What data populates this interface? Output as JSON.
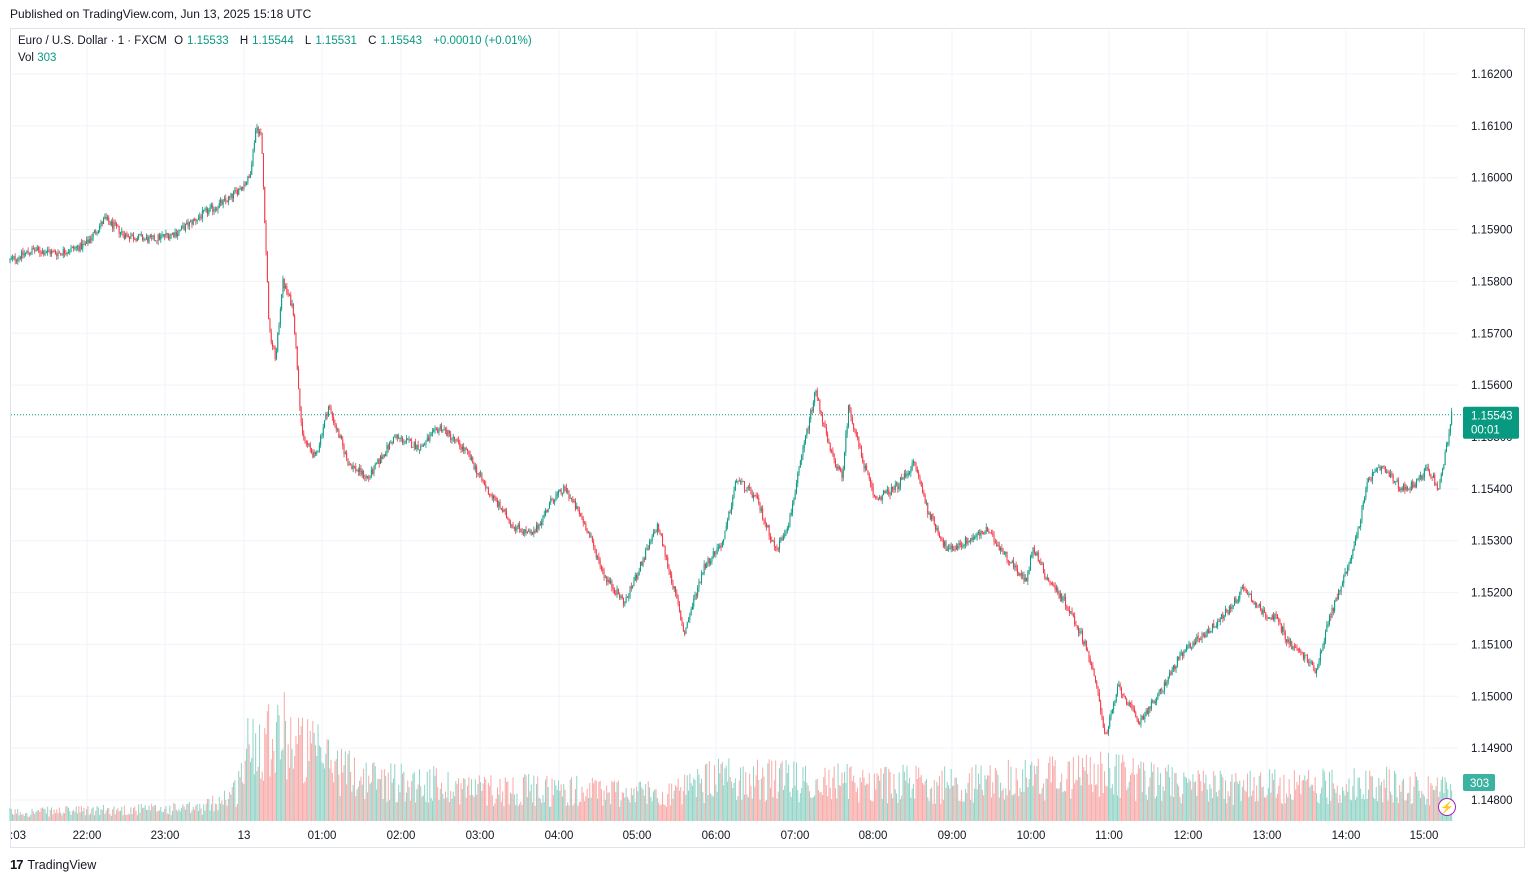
{
  "header": {
    "published": "Published on TradingView.com, Jun 13, 2025 15:18 UTC"
  },
  "legend": {
    "symbol": "Euro / U.S. Dollar · 1 · FXCM",
    "open_label": "O",
    "open": "1.15533",
    "high_label": "H",
    "high": "1.15544",
    "low_label": "L",
    "low": "1.15531",
    "close_label": "C",
    "close": "1.15543",
    "change": "+0.00010 (+0.01%)",
    "vol_label": "Vol",
    "vol_value": "303"
  },
  "footer": {
    "logo": "17",
    "brand": "TradingView"
  },
  "icons": {
    "bolt": "lightning-icon",
    "logo": "tradingview-logo-icon"
  },
  "colors": {
    "up": "#089981",
    "down": "#f23645",
    "vol_up": "#8fd3c6",
    "vol_down": "#f7a9a7",
    "grid": "#f0f3fa"
  },
  "chart_data": {
    "type": "candlestick",
    "symbol": "EURUSD",
    "timeframe": "1",
    "y_ticks": [
      "1.14800",
      "1.14900",
      "1.15000",
      "1.15100",
      "1.15200",
      "1.15300",
      "1.15400",
      "1.15500",
      "1.15600",
      "1.15700",
      "1.15800",
      "1.15900",
      "1.16000",
      "1.16100",
      "1.16200"
    ],
    "ylim": [
      1.1475,
      1.1627
    ],
    "x_ticks": [
      ":03",
      "22:00",
      "23:00",
      "13",
      "01:00",
      "02:00",
      "03:00",
      "04:00",
      "05:00",
      "06:00",
      "07:00",
      "08:00",
      "09:00",
      "10:00",
      "11:00",
      "12:00",
      "13:00",
      "14:00",
      "15:00"
    ],
    "last_price": "1.15543",
    "countdown": "00:01",
    "last_volume": "303",
    "price_path": [
      {
        "t": "21:03",
        "p": 1.1584
      },
      {
        "t": "21:20",
        "p": 1.1586
      },
      {
        "t": "21:40",
        "p": 1.15855
      },
      {
        "t": "22:00",
        "p": 1.1587
      },
      {
        "t": "22:15",
        "p": 1.1592
      },
      {
        "t": "22:30",
        "p": 1.1589
      },
      {
        "t": "22:50",
        "p": 1.1588
      },
      {
        "t": "23:10",
        "p": 1.15895
      },
      {
        "t": "23:30",
        "p": 1.1593
      },
      {
        "t": "23:50",
        "p": 1.1596
      },
      {
        "t": "00:05",
        "p": 1.16
      },
      {
        "t": "00:10",
        "p": 1.161
      },
      {
        "t": "00:14",
        "p": 1.1608
      },
      {
        "t": "00:20",
        "p": 1.157
      },
      {
        "t": "00:25",
        "p": 1.1565
      },
      {
        "t": "00:30",
        "p": 1.158
      },
      {
        "t": "00:38",
        "p": 1.1575
      },
      {
        "t": "00:45",
        "p": 1.155
      },
      {
        "t": "00:55",
        "p": 1.1546
      },
      {
        "t": "01:05",
        "p": 1.1556
      },
      {
        "t": "01:20",
        "p": 1.1545
      },
      {
        "t": "01:35",
        "p": 1.1542
      },
      {
        "t": "01:55",
        "p": 1.155
      },
      {
        "t": "02:15",
        "p": 1.1548
      },
      {
        "t": "02:30",
        "p": 1.1552
      },
      {
        "t": "02:50",
        "p": 1.1547
      },
      {
        "t": "03:05",
        "p": 1.154
      },
      {
        "t": "03:25",
        "p": 1.1533
      },
      {
        "t": "03:40",
        "p": 1.1531
      },
      {
        "t": "03:55",
        "p": 1.1538
      },
      {
        "t": "04:05",
        "p": 1.154
      },
      {
        "t": "04:20",
        "p": 1.1533
      },
      {
        "t": "04:35",
        "p": 1.1523
      },
      {
        "t": "04:50",
        "p": 1.1518
      },
      {
        "t": "05:00",
        "p": 1.1524
      },
      {
        "t": "05:15",
        "p": 1.1533
      },
      {
        "t": "05:30",
        "p": 1.1518
      },
      {
        "t": "05:35",
        "p": 1.1512
      },
      {
        "t": "05:50",
        "p": 1.1525
      },
      {
        "t": "06:05",
        "p": 1.153
      },
      {
        "t": "06:15",
        "p": 1.1542
      },
      {
        "t": "06:30",
        "p": 1.1538
      },
      {
        "t": "06:45",
        "p": 1.1528
      },
      {
        "t": "06:55",
        "p": 1.1534
      },
      {
        "t": "07:05",
        "p": 1.1547
      },
      {
        "t": "07:15",
        "p": 1.1559
      },
      {
        "t": "07:25",
        "p": 1.1548
      },
      {
        "t": "07:35",
        "p": 1.1542
      },
      {
        "t": "07:40",
        "p": 1.1556
      },
      {
        "t": "07:50",
        "p": 1.1546
      },
      {
        "t": "08:00",
        "p": 1.1538
      },
      {
        "t": "08:15",
        "p": 1.154
      },
      {
        "t": "08:30",
        "p": 1.1545
      },
      {
        "t": "08:40",
        "p": 1.1536
      },
      {
        "t": "08:55",
        "p": 1.1528
      },
      {
        "t": "09:10",
        "p": 1.153
      },
      {
        "t": "09:25",
        "p": 1.1532
      },
      {
        "t": "09:40",
        "p": 1.1527
      },
      {
        "t": "09:55",
        "p": 1.1522
      },
      {
        "t": "10:00",
        "p": 1.1529
      },
      {
        "t": "10:10",
        "p": 1.1523
      },
      {
        "t": "10:25",
        "p": 1.1518
      },
      {
        "t": "10:40",
        "p": 1.151
      },
      {
        "t": "10:50",
        "p": 1.15
      },
      {
        "t": "10:55",
        "p": 1.1492
      },
      {
        "t": "11:05",
        "p": 1.1502
      },
      {
        "t": "11:20",
        "p": 1.1495
      },
      {
        "t": "11:35",
        "p": 1.15
      },
      {
        "t": "11:50",
        "p": 1.1507
      },
      {
        "t": "12:00",
        "p": 1.151
      },
      {
        "t": "12:15",
        "p": 1.1513
      },
      {
        "t": "12:30",
        "p": 1.1517
      },
      {
        "t": "12:40",
        "p": 1.1521
      },
      {
        "t": "12:55",
        "p": 1.1516
      },
      {
        "t": "13:05",
        "p": 1.1515
      },
      {
        "t": "13:15",
        "p": 1.151
      },
      {
        "t": "13:25",
        "p": 1.1508
      },
      {
        "t": "13:35",
        "p": 1.1505
      },
      {
        "t": "13:45",
        "p": 1.1515
      },
      {
        "t": "13:55",
        "p": 1.1522
      },
      {
        "t": "14:05",
        "p": 1.153
      },
      {
        "t": "14:15",
        "p": 1.1542
      },
      {
        "t": "14:25",
        "p": 1.1544
      },
      {
        "t": "14:40",
        "p": 1.154
      },
      {
        "t": "14:50",
        "p": 1.1541
      },
      {
        "t": "15:00",
        "p": 1.1544
      },
      {
        "t": "15:08",
        "p": 1.154
      },
      {
        "t": "15:12",
        "p": 1.1545
      },
      {
        "t": "15:18",
        "p": 1.15543
      }
    ],
    "volume_profile": [
      {
        "t": "21:03",
        "v": 20
      },
      {
        "t": "23:30",
        "v": 30
      },
      {
        "t": "23:55",
        "v": 70
      },
      {
        "t": "00:05",
        "v": 180
      },
      {
        "t": "00:25",
        "v": 220
      },
      {
        "t": "00:45",
        "v": 170
      },
      {
        "t": "01:30",
        "v": 100
      },
      {
        "t": "03:00",
        "v": 75
      },
      {
        "t": "05:30",
        "v": 65
      },
      {
        "t": "06:00",
        "v": 100
      },
      {
        "t": "07:30",
        "v": 90
      },
      {
        "t": "09:00",
        "v": 85
      },
      {
        "t": "10:50",
        "v": 110
      },
      {
        "t": "12:00",
        "v": 80
      },
      {
        "t": "13:00",
        "v": 80
      },
      {
        "t": "14:30",
        "v": 85
      },
      {
        "t": "15:18",
        "v": 70
      }
    ]
  }
}
